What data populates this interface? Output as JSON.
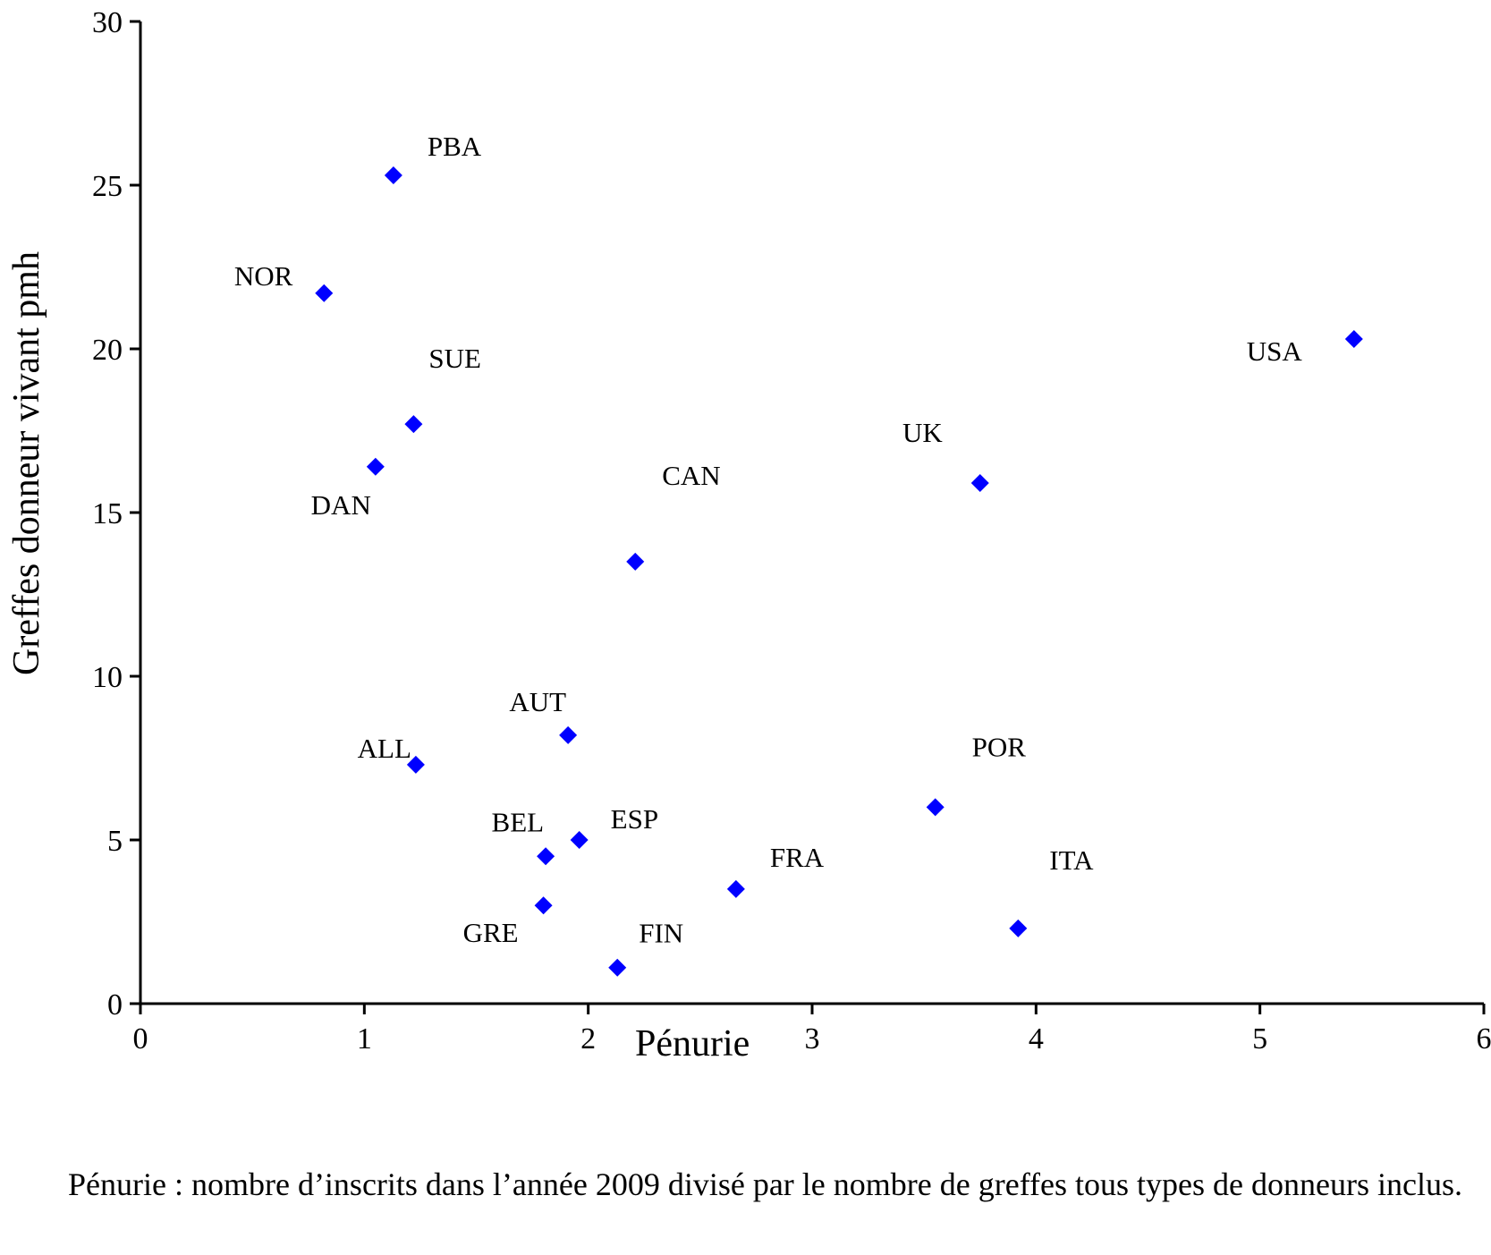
{
  "chart_data": {
    "type": "scatter",
    "title": "",
    "xlabel": "Pénurie",
    "ylabel": "Greffes donneur vivant pmh",
    "xlim": [
      0,
      6
    ],
    "ylim": [
      0,
      30
    ],
    "x_ticks": [
      "0",
      "1",
      "2",
      "3",
      "4",
      "5",
      "6"
    ],
    "y_ticks": [
      "0",
      "5",
      "10",
      "15",
      "20",
      "25",
      "30"
    ],
    "marker": "diamond",
    "color": "#0000ff",
    "grid": false,
    "legend": "none",
    "points": [
      {
        "label": "PBA",
        "x": 1.13,
        "y": 25.3
      },
      {
        "label": "NOR",
        "x": 0.82,
        "y": 21.7
      },
      {
        "label": "SUE",
        "x": 1.22,
        "y": 17.7
      },
      {
        "label": "DAN",
        "x": 1.05,
        "y": 16.4
      },
      {
        "label": "CAN",
        "x": 2.21,
        "y": 13.5
      },
      {
        "label": "UK",
        "x": 3.75,
        "y": 15.9
      },
      {
        "label": "USA",
        "x": 5.42,
        "y": 20.3
      },
      {
        "label": "AUT",
        "x": 1.91,
        "y": 8.2
      },
      {
        "label": "ALL",
        "x": 1.23,
        "y": 7.3
      },
      {
        "label": "BEL",
        "x": 1.81,
        "y": 4.5
      },
      {
        "label": "ESP",
        "x": 1.96,
        "y": 5.0
      },
      {
        "label": "GRE",
        "x": 1.8,
        "y": 3.0
      },
      {
        "label": "FIN",
        "x": 2.13,
        "y": 1.1
      },
      {
        "label": "FRA",
        "x": 2.66,
        "y": 3.5
      },
      {
        "label": "POR",
        "x": 3.55,
        "y": 6.0
      },
      {
        "label": "ITA",
        "x": 3.92,
        "y": 2.3
      }
    ]
  },
  "footnote": "Pénurie : nombre d’inscrits dans l’année 2009 divisé par le nombre de greffes tous types de donneurs inclus."
}
